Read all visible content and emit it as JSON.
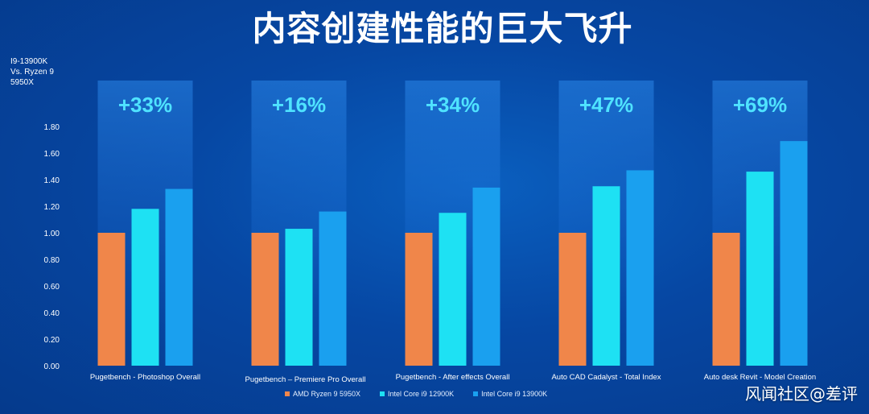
{
  "page": {
    "title": "内容创建性能的巨大飞升",
    "watermark": "风闻社区@差评"
  },
  "colors": {
    "amd": "#f0864a",
    "i9_12900k": "#1ee1f3",
    "i9_13900k": "#1aa0ef",
    "highlight": "#4fe3ff"
  },
  "chart_data": {
    "type": "bar",
    "ylabel": "I9-13900K\nVs. Ryzen 9\n5950X",
    "ylim": [
      0,
      1.8
    ],
    "yticks": [
      "0.00",
      "0.20",
      "0.40",
      "0.60",
      "0.80",
      "1.00",
      "1.20",
      "1.40",
      "1.60",
      "1.80"
    ],
    "categories": [
      "Pugetbench - Photoshop Overall",
      "Pugetbench – Premiere Pro Overall",
      "Pugetbench - After effects Overall",
      "Auto CAD Cadalyst - Total Index",
      "Auto desk Revit - Model Creation"
    ],
    "annotations": [
      "+33%",
      "+16%",
      "+34%",
      "+47%",
      "+69%"
    ],
    "series": [
      {
        "name": "AMD Ryzen 9 5950X",
        "values": [
          1.0,
          1.0,
          1.0,
          1.0,
          1.0
        ]
      },
      {
        "name": "Intel Core i9 12900K",
        "values": [
          1.18,
          1.03,
          1.15,
          1.35,
          1.46
        ]
      },
      {
        "name": "Intel Core i9 13900K",
        "values": [
          1.33,
          1.16,
          1.34,
          1.47,
          1.69
        ]
      }
    ],
    "grid": false,
    "legend": "bottom"
  }
}
